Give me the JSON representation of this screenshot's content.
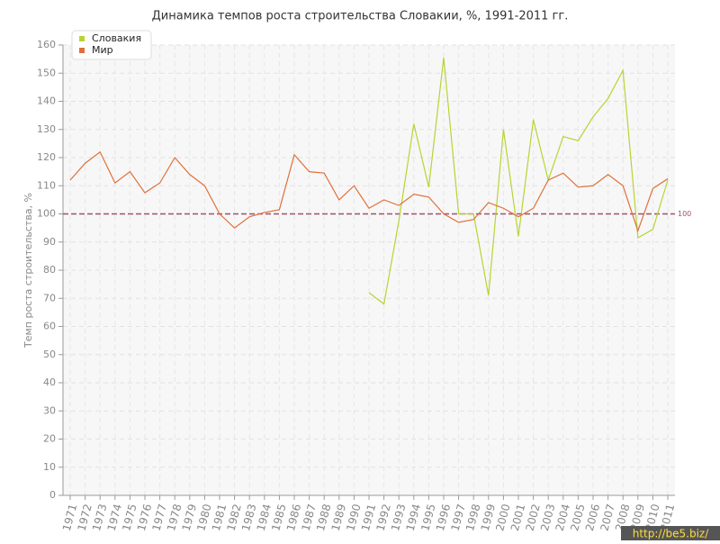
{
  "chart_data": {
    "type": "line",
    "title": "Динамика темпов роста строительства Словакии, %, 1991-2011 гг.",
    "y_label": "Темп роста строительства, %",
    "categories": [
      "1971",
      "1972",
      "1973",
      "1974",
      "1975",
      "1976",
      "1977",
      "1978",
      "1979",
      "1980",
      "1981",
      "1982",
      "1983",
      "1984",
      "1985",
      "1986",
      "1987",
      "1988",
      "1989",
      "1990",
      "1991",
      "1992",
      "1993",
      "1994",
      "1995",
      "1996",
      "1997",
      "1998",
      "1999",
      "2000",
      "2001",
      "2002",
      "2003",
      "2004",
      "2005",
      "2006",
      "2007",
      "2008",
      "2009",
      "2010",
      "2011"
    ],
    "series": [
      {
        "name": "Словакия",
        "color": "#b8d432",
        "values": [
          null,
          null,
          null,
          null,
          null,
          null,
          null,
          null,
          null,
          null,
          null,
          null,
          null,
          null,
          null,
          null,
          null,
          null,
          null,
          null,
          72,
          68,
          97.5,
          132,
          109.5,
          155.5,
          100,
          100,
          71,
          130,
          92,
          133.5,
          112,
          127.5,
          126,
          134.5,
          141,
          151,
          91.5,
          94.5,
          112
        ]
      },
      {
        "name": "Мир",
        "color": "#e0703a",
        "values": [
          112,
          118,
          122,
          111,
          115,
          107.5,
          111,
          120,
          114,
          110,
          100,
          95,
          99,
          100.5,
          101.5,
          121,
          115,
          114.5,
          105,
          110,
          102,
          105,
          103,
          107,
          106,
          100,
          97,
          98,
          104,
          102,
          99,
          102,
          112,
          114.5,
          109.5,
          110,
          114,
          110,
          94,
          109,
          112.5
        ]
      }
    ],
    "ylim": [
      0,
      160
    ],
    "yticks": [
      0,
      10,
      20,
      30,
      40,
      50,
      60,
      70,
      80,
      90,
      100,
      110,
      120,
      130,
      140,
      150,
      160
    ],
    "grid": true,
    "legend": "top-left",
    "reference_line": 100,
    "reference_color": "#a0506a",
    "watermark": "http://be5.biz/"
  }
}
